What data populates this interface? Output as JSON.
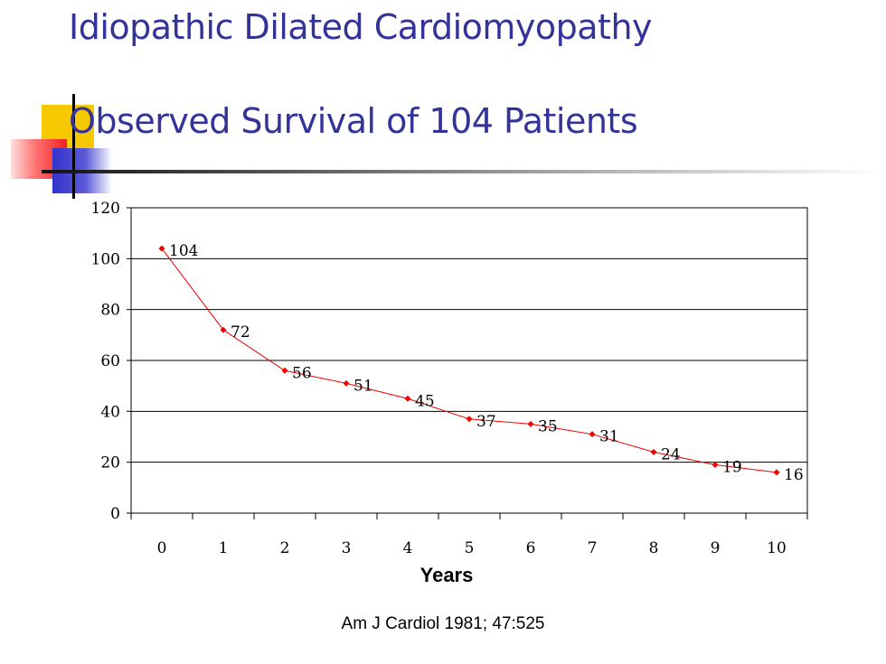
{
  "slide": {
    "title_line1": "Idiopathic Dilated Cardiomyopathy",
    "title_line2": "Observed Survival of 104 Patients",
    "citation": "Am J Cardiol 1981; 47:525"
  },
  "chart_data": {
    "type": "line",
    "title": "",
    "xlabel": "Years",
    "ylabel": "",
    "categories": [
      "0",
      "1",
      "2",
      "3",
      "4",
      "5",
      "6",
      "7",
      "8",
      "9",
      "10"
    ],
    "values": [
      104,
      72,
      56,
      51,
      45,
      37,
      35,
      31,
      24,
      19,
      16
    ],
    "data_labels": [
      "104",
      "72",
      "56",
      "51",
      "45",
      "37",
      "35",
      "31",
      "24",
      "19",
      "16"
    ],
    "y_ticks": [
      "0",
      "20",
      "40",
      "60",
      "80",
      "100",
      "120"
    ],
    "ylim": [
      0,
      120
    ],
    "grid": true,
    "legend": "none",
    "line_color": "#ee0000"
  }
}
